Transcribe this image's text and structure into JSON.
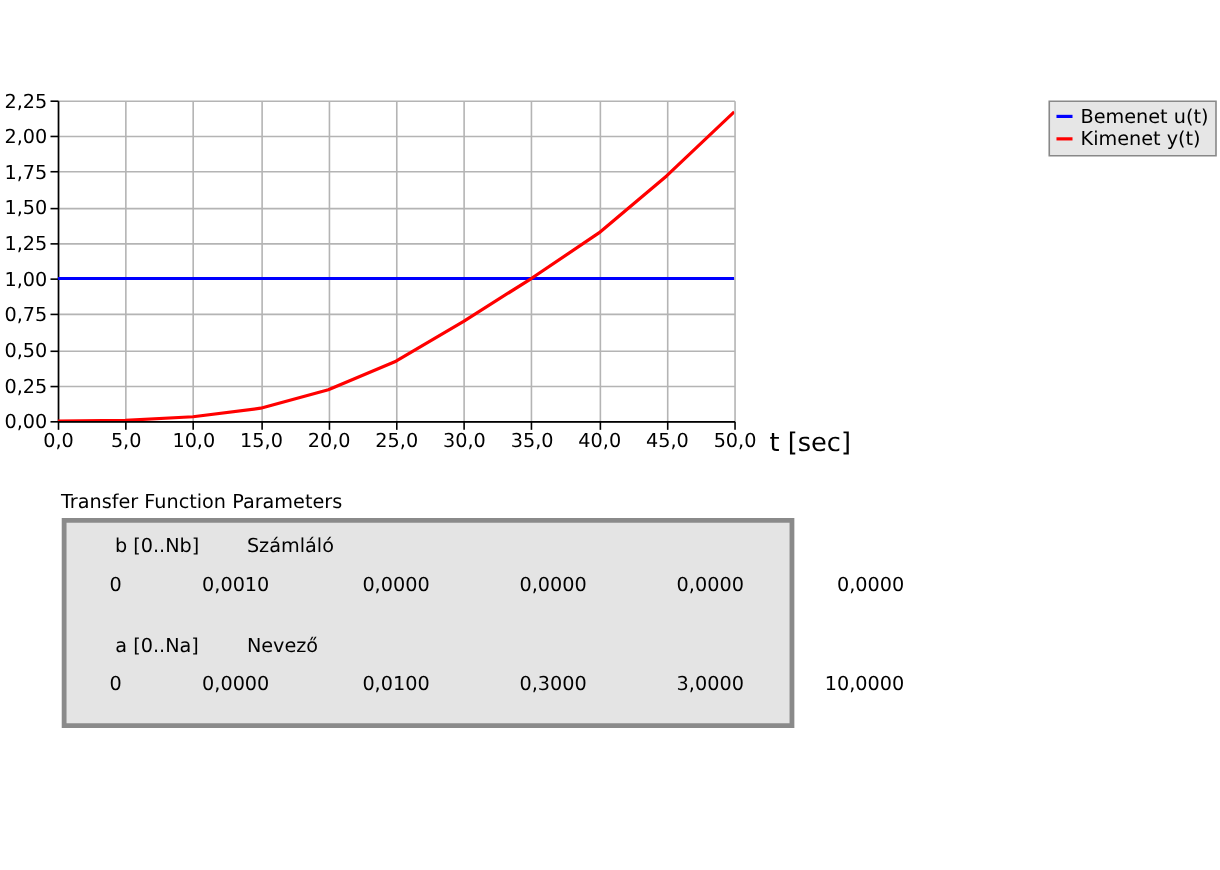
{
  "chart_data": {
    "type": "line",
    "xlabel": "t [sec]",
    "x": [
      0,
      5,
      10,
      15,
      20,
      25,
      30,
      35,
      40,
      45,
      50
    ],
    "series": [
      {
        "name": "Bemenet u(t)",
        "color": "#0000ff",
        "values": [
          1,
          1,
          1,
          1,
          1,
          1,
          1,
          1,
          1,
          1,
          1
        ]
      },
      {
        "name": "Kimenet y(t)",
        "color": "#ff0000",
        "values": [
          0,
          0.005,
          0.03,
          0.09,
          0.22,
          0.42,
          0.7,
          1.0,
          1.32,
          1.72,
          2.17
        ]
      }
    ],
    "xlim": [
      0,
      50
    ],
    "xticks": [
      {
        "value": 0,
        "label": "0,0"
      },
      {
        "value": 5,
        "label": "5,0"
      },
      {
        "value": 10,
        "label": "10,0"
      },
      {
        "value": 15,
        "label": "15,0"
      },
      {
        "value": 20,
        "label": "20,0"
      },
      {
        "value": 25,
        "label": "25,0"
      },
      {
        "value": 30,
        "label": "30,0"
      },
      {
        "value": 35,
        "label": "35,0"
      },
      {
        "value": 40,
        "label": "40,0"
      },
      {
        "value": 45,
        "label": "45,0"
      },
      {
        "value": 50,
        "label": "50,0"
      }
    ],
    "ylim": [
      0,
      2.25
    ],
    "yticks": [
      {
        "value": 0,
        "label": "0,00"
      },
      {
        "value": 0.25,
        "label": "0,25"
      },
      {
        "value": 0.5,
        "label": "0,50"
      },
      {
        "value": 0.75,
        "label": "0,75"
      },
      {
        "value": 1,
        "label": "1,00"
      },
      {
        "value": 1.25,
        "label": "1,25"
      },
      {
        "value": 1.5,
        "label": "1,50"
      },
      {
        "value": 1.75,
        "label": "1,75"
      },
      {
        "value": 2,
        "label": "2,00"
      },
      {
        "value": 2.25,
        "label": "2,25"
      }
    ],
    "grid": true,
    "legend": "top right",
    "marker": "none",
    "line_style": "solid",
    "annotations": [
      "Transfer Function Parameters",
      "b [0..Nb]",
      "Számláló",
      "0",
      "0,0010",
      "0,0000",
      "0,0000",
      "0,0000",
      "0,0000",
      "a [0..Na]",
      "Nevező",
      "0",
      "0,0000",
      "0,0100",
      "0,3000",
      "3,0000",
      "10,0000"
    ]
  }
}
